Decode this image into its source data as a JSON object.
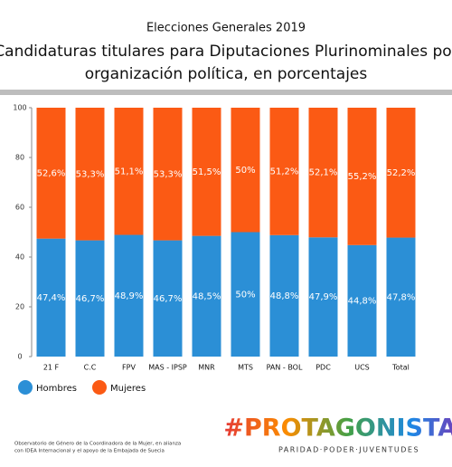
{
  "chart_data": {
    "type": "stacked_bar",
    "subtitle": "Elecciones Generales 2019",
    "title": [
      "Candidaturas titulares para Diputaciones Plurinominales por",
      "organización política, en  porcentajes"
    ],
    "categories": [
      "21 F",
      "C.C",
      "FPV",
      "MAS - IPSP",
      "MNR",
      "MTS",
      "PAN - BOL",
      "PDC",
      "UCS",
      "Total"
    ],
    "series": [
      {
        "name": "Hombres",
        "color": "#2b8fd6",
        "values": [
          47.4,
          46.7,
          48.9,
          46.7,
          48.5,
          50,
          48.8,
          47.9,
          44.8,
          47.8
        ],
        "value_labels": [
          "47,4%",
          "46,7%",
          "48,9%",
          "46,7%",
          "48,5%",
          "50%",
          "48,8%",
          "47,9%",
          "44,8%",
          "47,8%"
        ]
      },
      {
        "name": "Mujeres",
        "color": "#fb5a14",
        "values": [
          52.6,
          53.3,
          51.1,
          53.3,
          51.5,
          50,
          51.2,
          52.1,
          55.2,
          52.2
        ],
        "value_labels": [
          "52,6%",
          "53,3%",
          "51,1%",
          "53,3%",
          "51,5%",
          "50%",
          "51,2%",
          "52,1%",
          "55,2%",
          "52,2%"
        ]
      }
    ],
    "ylim": [
      0,
      100
    ],
    "yticks": [
      0,
      20,
      40,
      60,
      80,
      100
    ],
    "grid": false,
    "legend": "bottom-left"
  },
  "footer": {
    "note": [
      "Observatorio de Género de la Coordinadora de la Mujer, en alianza",
      "con IDEA Internacional y el apoyo de la Embajada de Suecia"
    ],
    "logo": "#PROTAGONISTAS",
    "tagline": "PARIDAD·PODER·JUVENTUDES"
  }
}
